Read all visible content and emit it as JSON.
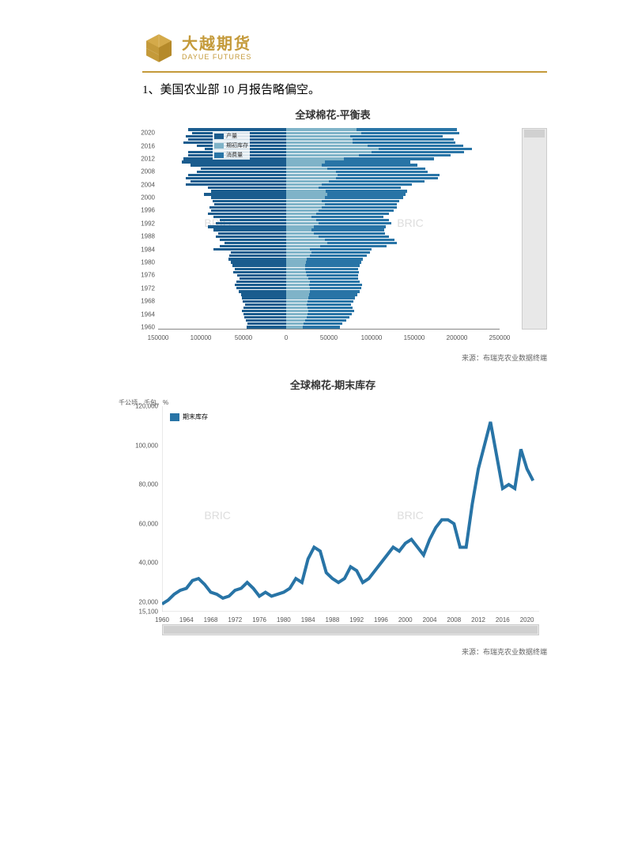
{
  "logo": {
    "cn": "大越期货",
    "en": "DAYUE FUTURES"
  },
  "heading": "1、美国农业部 10 月报告略偏空。",
  "chart1": {
    "title": "全球棉花-平衡表",
    "source": "来源：布瑞克农业数据终端",
    "watermark": "BRIC",
    "legend": [
      "产量",
      "期初库存",
      "消费量"
    ],
    "legend_colors": [
      "#1a5c8e",
      "#7fb3c8",
      "#2874a6"
    ],
    "y_labels": [
      "2020",
      "2016",
      "2012",
      "2008",
      "2004",
      "2000",
      "1996",
      "1992",
      "1988",
      "1984",
      "1980",
      "1976",
      "1972",
      "1968",
      "1964",
      "1960"
    ],
    "x_labels": [
      "150000",
      "100000",
      "50000",
      "0",
      "50000",
      "100000",
      "150000",
      "200000",
      "250000"
    ],
    "x_min": -150000,
    "x_max": 250000,
    "years": [
      1960,
      1961,
      1962,
      1963,
      1964,
      1965,
      1966,
      1967,
      1968,
      1969,
      1970,
      1971,
      1972,
      1973,
      1974,
      1975,
      1976,
      1977,
      1978,
      1979,
      1980,
      1981,
      1982,
      1983,
      1984,
      1985,
      1986,
      1987,
      1988,
      1989,
      1990,
      1991,
      1992,
      1993,
      1994,
      1995,
      1996,
      1997,
      1998,
      1999,
      2000,
      2001,
      2002,
      2003,
      2004,
      2005,
      2006,
      2007,
      2008,
      2009,
      2010,
      2011,
      2012,
      2013,
      2014,
      2015,
      2016,
      2017,
      2018,
      2019,
      2020,
      2021
    ],
    "neg_a": [
      46000,
      45000,
      47000,
      49000,
      50000,
      52000,
      50000,
      48000,
      51000,
      52000,
      53000,
      56000,
      58000,
      60000,
      58000,
      55000,
      57000,
      62000,
      60000,
      63000,
      65000,
      68000,
      67000,
      65000,
      85000,
      78000,
      72000,
      78000,
      82000,
      80000,
      85000,
      92000,
      82000,
      78000,
      85000,
      92000,
      88000,
      90000,
      84000,
      86000,
      88000,
      96000,
      88000,
      92000,
      118000,
      112000,
      118000,
      115000,
      105000,
      100000,
      112000,
      122000,
      120000,
      115000,
      115000,
      95000,
      105000,
      120000,
      115000,
      118000,
      110000,
      115000
    ],
    "pos_a": [
      19000,
      20000,
      22000,
      24000,
      25000,
      26000,
      25000,
      24000,
      25000,
      26000,
      27000,
      28000,
      28000,
      27000,
      28000,
      26000,
      24000,
      23000,
      22000,
      22000,
      23000,
      24000,
      28000,
      30000,
      28000,
      40000,
      48000,
      45000,
      38000,
      32000,
      30000,
      32000,
      38000,
      35000,
      30000,
      35000,
      38000,
      42000,
      45000,
      42000,
      45000,
      48000,
      46000,
      38000,
      42000,
      50000,
      58000,
      60000,
      58000,
      48000,
      42000,
      45000,
      68000,
      85000,
      100000,
      108000,
      95000,
      78000,
      78000,
      75000,
      88000,
      82000
    ],
    "pos_b": [
      44000,
      46000,
      48000,
      50000,
      52000,
      54000,
      53000,
      52000,
      54000,
      55000,
      56000,
      58000,
      60000,
      62000,
      58000,
      58000,
      60000,
      62000,
      62000,
      64000,
      65000,
      66000,
      66000,
      68000,
      72000,
      78000,
      82000,
      82000,
      82000,
      84000,
      85000,
      85000,
      85000,
      85000,
      84000,
      85000,
      88000,
      88000,
      85000,
      90000,
      92000,
      92000,
      96000,
      96000,
      105000,
      112000,
      120000,
      120000,
      108000,
      115000,
      112000,
      100000,
      105000,
      108000,
      108000,
      110000,
      112000,
      120000,
      118000,
      108000,
      115000,
      118000
    ]
  },
  "chart2": {
    "title": "全球棉花-期末库存",
    "ylabel": "千公顷，千包，%",
    "legend": "期末库存",
    "legend_color": "#2874a6",
    "source": "来源：布瑞克农业数据终端",
    "watermark": "BRIC",
    "y_ticks": [
      15100,
      20000,
      40000,
      60000,
      80000,
      100000,
      120000
    ],
    "y_tick_labels": [
      "15,100",
      "20,000",
      "40,000",
      "60,000",
      "80,000",
      "100,000",
      "120,000"
    ],
    "x_ticks": [
      1960,
      1964,
      1968,
      1972,
      1976,
      1980,
      1984,
      1988,
      1992,
      1996,
      2000,
      2004,
      2008,
      2012,
      2016,
      2020
    ],
    "x_min": 1960,
    "x_max": 2022,
    "y_min": 15100,
    "y_max": 120000,
    "line_color": "#2874a6",
    "data": [
      [
        1960,
        19000
      ],
      [
        1961,
        21000
      ],
      [
        1962,
        24000
      ],
      [
        1963,
        26000
      ],
      [
        1964,
        27000
      ],
      [
        1965,
        31000
      ],
      [
        1966,
        32000
      ],
      [
        1967,
        29000
      ],
      [
        1968,
        25000
      ],
      [
        1969,
        24000
      ],
      [
        1970,
        22000
      ],
      [
        1971,
        23000
      ],
      [
        1972,
        26000
      ],
      [
        1973,
        27000
      ],
      [
        1974,
        30000
      ],
      [
        1975,
        27000
      ],
      [
        1976,
        23000
      ],
      [
        1977,
        25000
      ],
      [
        1978,
        23000
      ],
      [
        1979,
        24000
      ],
      [
        1980,
        25000
      ],
      [
        1981,
        27000
      ],
      [
        1982,
        32000
      ],
      [
        1983,
        30000
      ],
      [
        1984,
        42000
      ],
      [
        1985,
        48000
      ],
      [
        1986,
        46000
      ],
      [
        1987,
        35000
      ],
      [
        1988,
        32000
      ],
      [
        1989,
        30000
      ],
      [
        1990,
        32000
      ],
      [
        1991,
        38000
      ],
      [
        1992,
        36000
      ],
      [
        1993,
        30000
      ],
      [
        1994,
        32000
      ],
      [
        1995,
        36000
      ],
      [
        1996,
        40000
      ],
      [
        1997,
        44000
      ],
      [
        1998,
        48000
      ],
      [
        1999,
        46000
      ],
      [
        2000,
        50000
      ],
      [
        2001,
        52000
      ],
      [
        2002,
        48000
      ],
      [
        2003,
        44000
      ],
      [
        2004,
        52000
      ],
      [
        2005,
        58000
      ],
      [
        2006,
        62000
      ],
      [
        2007,
        62000
      ],
      [
        2008,
        60000
      ],
      [
        2009,
        48000
      ],
      [
        2010,
        48000
      ],
      [
        2011,
        70000
      ],
      [
        2012,
        88000
      ],
      [
        2013,
        100000
      ],
      [
        2014,
        112000
      ],
      [
        2015,
        95000
      ],
      [
        2016,
        78000
      ],
      [
        2017,
        80000
      ],
      [
        2018,
        78000
      ],
      [
        2019,
        98000
      ],
      [
        2020,
        88000
      ],
      [
        2021,
        82000
      ]
    ]
  }
}
